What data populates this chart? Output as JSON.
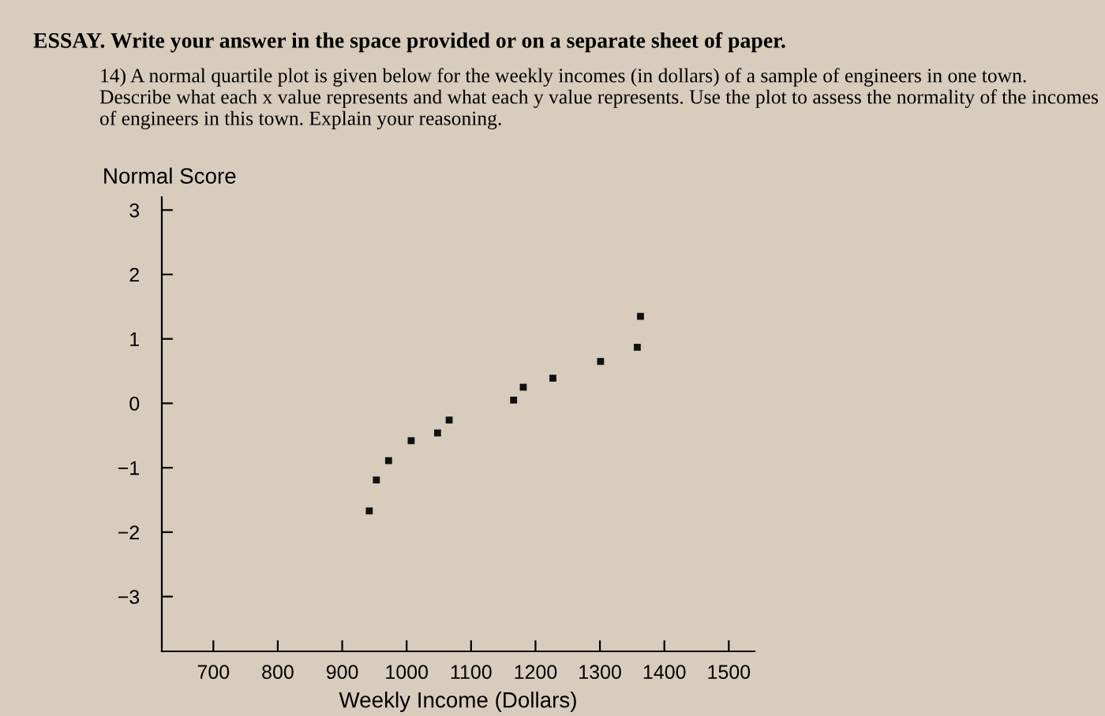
{
  "chart_data": {
    "type": "scatter",
    "title": "ESSAY. Write your answer in the space provided or on a separate sheet of paper.",
    "annotations": [
      "14) A normal quartile plot is given below for the weekly incomes (in dollars) of a sample of engineers in one town. Describe what each x value represents and what each y value represents. Use the plot to assess the normality of the incomes of engineers in this town. Explain your reasoning."
    ],
    "xlabel": "Weekly Income (Dollars)",
    "ylabel": "Normal Score",
    "x": [
      942,
      953,
      972,
      1007,
      1048,
      1066,
      1166,
      1181,
      1227,
      1301,
      1358,
      1363
    ],
    "values": [
      -1.67,
      -1.19,
      -0.89,
      -0.58,
      -0.46,
      -0.26,
      0.05,
      0.25,
      0.39,
      0.65,
      0.87,
      1.35
    ],
    "color": "#111111",
    "marker": "square",
    "grid": false,
    "xlim": [
      620,
      1540
    ],
    "ylim": [
      -3.85,
      3.2
    ],
    "xticks": [
      700,
      800,
      900,
      1000,
      1100,
      1200,
      1300,
      1400,
      1500
    ],
    "yticks": [
      {
        "value": 3,
        "label": "3"
      },
      {
        "value": 2,
        "label": "2"
      },
      {
        "value": 1,
        "label": "1"
      },
      {
        "value": 0,
        "label": "0"
      },
      {
        "value": -1,
        "label": "−1"
      },
      {
        "value": -2,
        "label": "−2"
      },
      {
        "value": -3,
        "label": "−3"
      }
    ]
  }
}
